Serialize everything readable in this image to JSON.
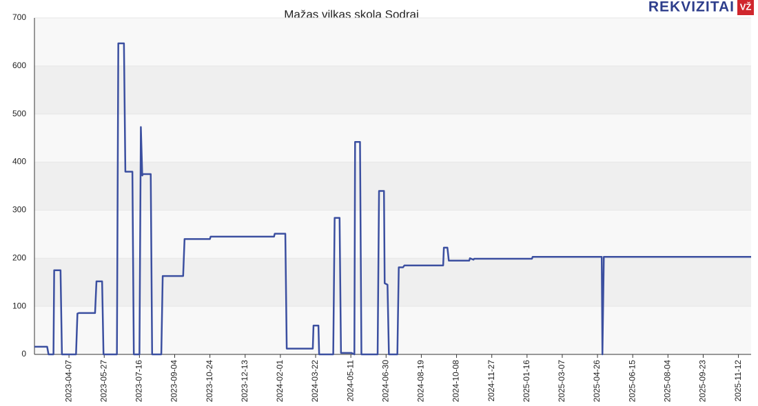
{
  "chart_data": {
    "type": "line",
    "title": "Mažas vilkas skola Sodrai",
    "logo": {
      "brand": "REKVIZITAI",
      "badge": "VŽ"
    },
    "x": [
      "2023-02-17",
      "2023-03-07",
      "2023-03-09",
      "2023-03-16",
      "2023-03-17",
      "2023-03-26",
      "2023-03-28",
      "2023-04-17",
      "2023-04-19",
      "2023-04-21",
      "2023-05-14",
      "2023-05-16",
      "2023-05-24",
      "2023-05-26",
      "2023-06-14",
      "2023-06-16",
      "2023-06-24",
      "2023-06-26",
      "2023-07-06",
      "2023-07-08",
      "2023-07-16",
      "2023-07-18",
      "2023-07-20",
      "2023-07-21",
      "2023-08-01",
      "2023-08-03",
      "2023-08-16",
      "2023-08-18",
      "2023-09-16",
      "2023-09-18",
      "2023-10-24",
      "2023-10-25",
      "2024-01-23",
      "2024-01-24",
      "2024-02-08",
      "2024-02-10",
      "2024-03-18",
      "2024-03-19",
      "2024-03-26",
      "2024-03-27",
      "2024-04-16",
      "2024-04-18",
      "2024-04-25",
      "2024-04-27",
      "2024-05-12",
      "2024-05-16",
      "2024-05-17",
      "2024-05-24",
      "2024-05-26",
      "2024-06-18",
      "2024-06-20",
      "2024-06-27",
      "2024-06-28",
      "2024-07-02",
      "2024-07-04",
      "2024-07-16",
      "2024-07-18",
      "2024-07-24",
      "2024-07-26",
      "2024-09-19",
      "2024-09-20",
      "2024-09-25",
      "2024-09-27",
      "2024-10-26",
      "2024-10-27",
      "2024-11-01",
      "2024-11-02",
      "2025-01-23",
      "2025-01-24",
      "2025-05-02",
      "2025-05-03",
      "2025-05-05",
      "2025-11-30"
    ],
    "series": [
      {
        "color": "#3b4fa0",
        "values": [
          16,
          16,
          0,
          0,
          175,
          175,
          0,
          0,
          85,
          86,
          86,
          152,
          152,
          0,
          0,
          647,
          647,
          380,
          380,
          0,
          0,
          473,
          372,
          375,
          375,
          0,
          0,
          163,
          163,
          240,
          240,
          245,
          245,
          251,
          251,
          12,
          12,
          60,
          60,
          0,
          0,
          284,
          284,
          3,
          3,
          0,
          442,
          442,
          0,
          0,
          340,
          340,
          148,
          145,
          0,
          0,
          181,
          181,
          185,
          185,
          222,
          222,
          195,
          195,
          200,
          197,
          199,
          199,
          203,
          203,
          0,
          203,
          203
        ]
      }
    ],
    "xlim": [
      "2023-02-17",
      "2025-11-30"
    ],
    "xticks": [
      "2023-04-07",
      "2023-05-27",
      "2023-07-16",
      "2023-09-04",
      "2023-10-24",
      "2023-12-13",
      "2024-02-01",
      "2024-03-22",
      "2024-05-11",
      "2024-06-30",
      "2024-08-19",
      "2024-10-08",
      "2024-11-27",
      "2025-01-16",
      "2025-03-07",
      "2025-04-26",
      "2025-06-15",
      "2025-08-04",
      "2025-09-23",
      "2025-11-12"
    ],
    "ylim": [
      0,
      700
    ],
    "yticks": [
      0,
      100,
      200,
      300,
      400,
      500,
      600,
      700
    ]
  }
}
